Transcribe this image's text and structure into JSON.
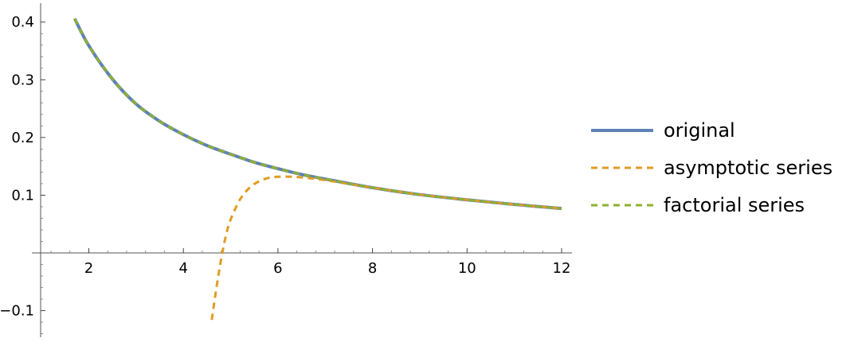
{
  "chart_data": {
    "type": "line",
    "title": "",
    "xlabel": "",
    "ylabel": "",
    "xlim": [
      1,
      12.2
    ],
    "ylim": [
      -0.15,
      0.43
    ],
    "x_ticks": [
      2,
      4,
      6,
      8,
      10,
      12
    ],
    "x_tick_labels": [
      "2",
      "4",
      "6",
      "8",
      "10",
      "12"
    ],
    "y_ticks": [
      -0.1,
      0.1,
      0.2,
      0.3,
      0.4
    ],
    "y_tick_labels": [
      "−0.1",
      "0.1",
      "0.2",
      "0.3",
      "0.4"
    ],
    "grid": false,
    "legend_position": "right",
    "series": [
      {
        "name": "original",
        "color": "#5E81B5",
        "style": "solid",
        "x": [
          1.7,
          2.0,
          2.5,
          3.0,
          3.5,
          4.0,
          4.5,
          5.0,
          5.5,
          6.0,
          6.5,
          7.0,
          8.0,
          9.0,
          10.0,
          11.0,
          12.0
        ],
        "y": [
          0.406,
          0.359,
          0.301,
          0.258,
          0.228,
          0.205,
          0.186,
          0.171,
          0.157,
          0.146,
          0.136,
          0.128,
          0.113,
          0.101,
          0.092,
          0.084,
          0.077
        ]
      },
      {
        "name": "asymptotic series",
        "color": "#E19C24",
        "style": "dashed",
        "x": [
          4.6,
          4.7,
          4.8,
          4.9,
          5.0,
          5.2,
          5.4,
          5.6,
          5.8,
          6.0,
          6.3,
          6.6,
          7.0,
          8.0,
          9.0,
          10.0,
          11.0,
          12.0
        ],
        "y": [
          -0.116,
          -0.06,
          -0.01,
          0.03,
          0.058,
          0.093,
          0.113,
          0.124,
          0.13,
          0.132,
          0.132,
          0.13,
          0.126,
          0.113,
          0.101,
          0.092,
          0.084,
          0.077
        ]
      },
      {
        "name": "factorial series",
        "color": "#8FB032",
        "style": "dashed",
        "x": [
          1.7,
          2.0,
          2.5,
          3.0,
          3.5,
          4.0,
          4.5,
          5.0,
          5.5,
          6.0,
          6.5,
          7.0,
          8.0,
          9.0,
          10.0,
          11.0,
          12.0
        ],
        "y": [
          0.406,
          0.359,
          0.301,
          0.258,
          0.228,
          0.205,
          0.186,
          0.171,
          0.157,
          0.146,
          0.136,
          0.128,
          0.113,
          0.101,
          0.092,
          0.084,
          0.077
        ]
      }
    ]
  }
}
